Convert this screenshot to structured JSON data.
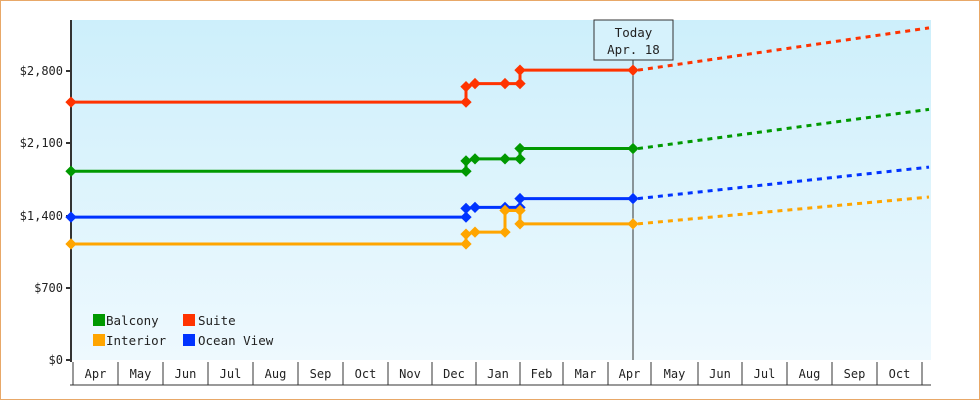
{
  "chart_data": {
    "type": "line",
    "title": "",
    "xlabel": "",
    "ylabel": "",
    "ylim": [
      0,
      3290
    ],
    "y_ticks": [
      "$0",
      "$700",
      "$1,400",
      "$2,100",
      "$2,800"
    ],
    "y_tick_values": [
      0,
      700,
      1400,
      2100,
      2800
    ],
    "x_ticks": [
      "Apr",
      "May",
      "Jun",
      "Jul",
      "Aug",
      "Sep",
      "Oct",
      "Nov",
      "Dec",
      "Jan",
      "Feb",
      "Mar",
      "Apr",
      "May",
      "Jun",
      "Jul",
      "Aug",
      "Sep",
      "Oct"
    ],
    "grid": false,
    "legend_position": "bottom-left",
    "today_marker": {
      "line1": "Today",
      "line2": "Apr. 18"
    },
    "series": [
      {
        "name": "Suite",
        "color": "#ff3300",
        "historical": [
          {
            "x": "Apr (start)",
            "y": 2500
          },
          {
            "x": "Dec 4",
            "y": 2500
          },
          {
            "x": "Dec 4",
            "y": 2650
          },
          {
            "x": "Dec 10",
            "y": 2680
          },
          {
            "x": "Jan 10",
            "y": 2680
          },
          {
            "x": "Jan 20",
            "y": 2680
          },
          {
            "x": "Jan 20",
            "y": 2810
          },
          {
            "x": "Apr 18",
            "y": 2810
          }
        ],
        "forecast": [
          {
            "x": "Apr 18",
            "y": 2810
          },
          {
            "x": "Oct end",
            "y": 3220
          }
        ]
      },
      {
        "name": "Balcony",
        "color": "#009900",
        "historical": [
          {
            "x": "Apr (start)",
            "y": 1830
          },
          {
            "x": "Dec 4",
            "y": 1830
          },
          {
            "x": "Dec 4",
            "y": 1930
          },
          {
            "x": "Dec 10",
            "y": 1950
          },
          {
            "x": "Jan 10",
            "y": 1950
          },
          {
            "x": "Jan 20",
            "y": 1950
          },
          {
            "x": "Jan 20",
            "y": 2050
          },
          {
            "x": "Apr 18",
            "y": 2050
          }
        ],
        "forecast": [
          {
            "x": "Apr 18",
            "y": 2050
          },
          {
            "x": "Oct end",
            "y": 2430
          }
        ]
      },
      {
        "name": "Ocean View",
        "color": "#0033ff",
        "historical": [
          {
            "x": "Apr (start)",
            "y": 1385
          },
          {
            "x": "Dec 4",
            "y": 1385
          },
          {
            "x": "Dec 4",
            "y": 1470
          },
          {
            "x": "Dec 10",
            "y": 1480
          },
          {
            "x": "Jan 10",
            "y": 1480
          },
          {
            "x": "Jan 20",
            "y": 1480
          },
          {
            "x": "Jan 20",
            "y": 1565
          },
          {
            "x": "Apr 18",
            "y": 1565
          }
        ],
        "forecast": [
          {
            "x": "Apr 18",
            "y": 1565
          },
          {
            "x": "Oct end",
            "y": 1870
          }
        ]
      },
      {
        "name": "Interior",
        "color": "#ffa500",
        "historical": [
          {
            "x": "Apr (start)",
            "y": 1125
          },
          {
            "x": "Dec 4",
            "y": 1125
          },
          {
            "x": "Dec 4",
            "y": 1220
          },
          {
            "x": "Dec 10",
            "y": 1240
          },
          {
            "x": "Jan 10",
            "y": 1240
          },
          {
            "x": "Jan 10",
            "y": 1450
          },
          {
            "x": "Jan 20",
            "y": 1450
          },
          {
            "x": "Jan 20",
            "y": 1320
          },
          {
            "x": "Apr 18",
            "y": 1320
          }
        ],
        "forecast": [
          {
            "x": "Apr 18",
            "y": 1320
          },
          {
            "x": "Oct end",
            "y": 1580
          }
        ]
      }
    ],
    "legend": [
      {
        "label": "Balcony",
        "color": "#009900"
      },
      {
        "label": "Suite",
        "color": "#ff3300"
      },
      {
        "label": "Interior",
        "color": "#ffa500"
      },
      {
        "label": "Ocean View",
        "color": "#0033ff"
      }
    ]
  }
}
